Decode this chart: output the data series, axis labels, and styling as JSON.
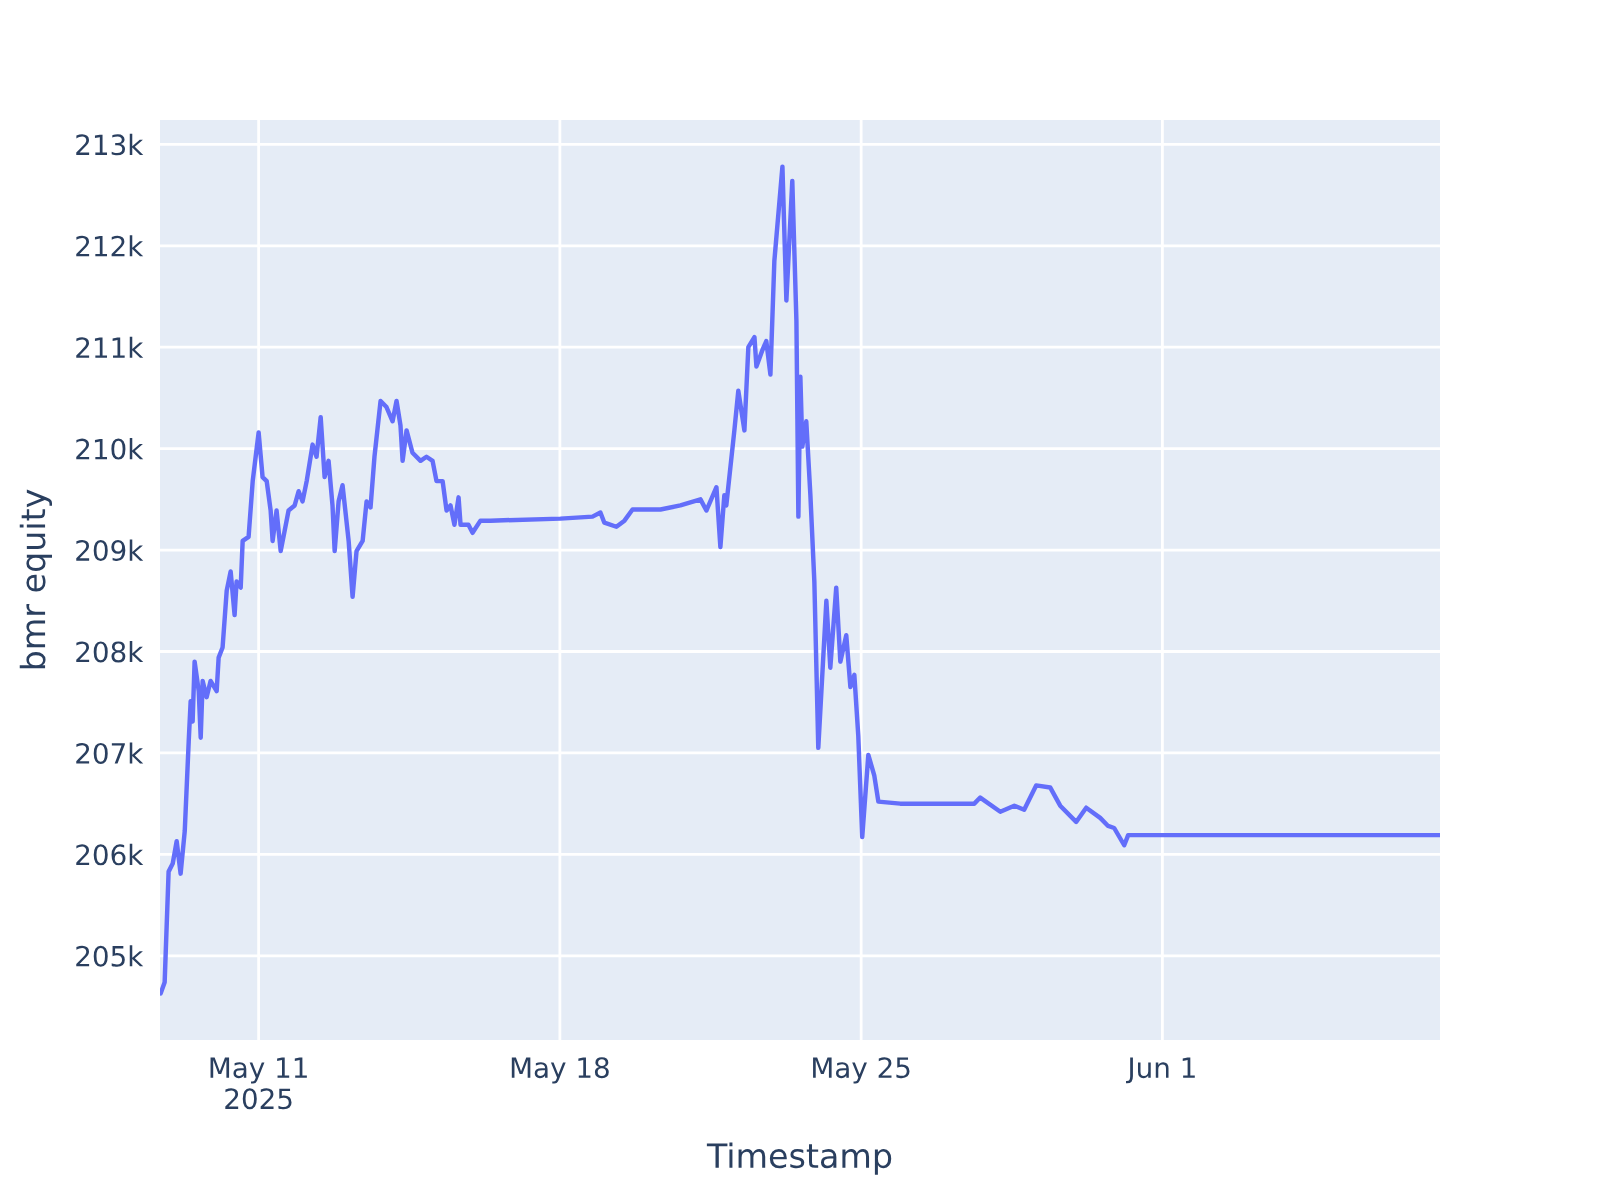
{
  "chart_data": {
    "type": "line",
    "xlabel": "Timestamp",
    "ylabel": "bmr equity",
    "x": [
      "2025-05-08T17:24",
      "2025-05-08T19:36",
      "2025-05-08T21:48",
      "2025-05-09T00:06",
      "2025-05-09T02:18",
      "2025-05-09T04:30",
      "2025-05-09T06:48",
      "2025-05-09T09:00",
      "2025-05-09T10:06",
      "2025-05-09T11:12",
      "2025-05-09T12:18",
      "2025-05-09T14:36",
      "2025-05-09T15:42",
      "2025-05-09T16:48",
      "2025-05-09T19:00",
      "2025-05-09T21:12",
      "2025-05-10T00:36",
      "2025-05-10T01:42",
      "2025-05-10T03:54",
      "2025-05-10T06:12",
      "2025-05-10T08:24",
      "2025-05-10T10:36",
      "2025-05-10T11:42",
      "2025-05-10T14:00",
      "2025-05-10T15:06",
      "2025-05-10T18:24",
      "2025-05-10T20:42",
      "2025-05-11T00:00",
      "2025-05-11T02:12",
      "2025-05-11T04:30",
      "2025-05-11T06:42",
      "2025-05-11T07:48",
      "2025-05-11T10:00",
      "2025-05-11T12:18",
      "2025-05-11T14:30",
      "2025-05-11T16:42",
      "2025-05-11T20:06",
      "2025-05-11T22:18",
      "2025-05-12T00:30",
      "2025-05-12T02:48",
      "2025-05-12T06:06",
      "2025-05-12T08:18",
      "2025-05-12T10:36",
      "2025-05-12T12:48",
      "2025-05-12T15:00",
      "2025-05-12T17:12",
      "2025-05-12T18:24",
      "2025-05-12T20:36",
      "2025-05-12T22:48",
      "2025-05-13T02:12",
      "2025-05-13T04:24",
      "2025-05-13T06:36",
      "2025-05-13T10:00",
      "2025-05-13T12:12",
      "2025-05-13T14:24",
      "2025-05-13T16:36",
      "2025-05-13T20:00",
      "2025-05-13T23:18",
      "2025-05-14T02:42",
      "2025-05-14T04:54",
      "2025-05-14T07:06",
      "2025-05-14T08:18",
      "2025-05-14T10:30",
      "2025-05-14T13:48",
      "2025-05-14T18:18",
      "2025-05-14T21:36",
      "2025-05-15T01:00",
      "2025-05-15T03:12",
      "2025-05-15T06:36",
      "2025-05-15T08:48",
      "2025-05-15T11:00",
      "2025-05-15T13:12",
      "2025-05-15T15:30",
      "2025-05-15T16:36",
      "2025-05-15T21:00",
      "2025-05-15T23:18",
      "2025-05-16T03:42",
      "2025-05-16T09:18",
      "2025-05-18T00:18",
      "2025-05-18T18:12",
      "2025-05-18T22:36",
      "2025-05-19T00:48",
      "2025-05-19T07:30",
      "2025-05-19T12:00",
      "2025-05-19T16:30",
      "2025-05-20T08:06",
      "2025-05-20T19:12",
      "2025-05-21T06:24",
      "2025-05-21T09:42",
      "2025-05-21T15:18",
      "2025-05-21T17:30",
      "2025-05-21T19:42",
      "2025-05-21T20:48",
      "2025-05-22T01:18",
      "2025-05-22T03:30",
      "2025-05-22T06:54",
      "2025-05-22T09:06",
      "2025-05-22T12:30",
      "2025-05-22T13:36",
      "2025-05-22T16:54",
      "2025-05-22T19:06",
      "2025-05-22T21:24",
      "2025-05-22T23:36",
      "2025-05-23T04:06",
      "2025-05-23T06:18",
      "2025-05-23T09:36",
      "2025-05-23T11:54",
      "2025-05-23T13:00",
      "2025-05-23T14:06",
      "2025-05-23T15:12",
      "2025-05-23T17:24",
      "2025-05-23T19:42",
      "2025-05-23T21:54",
      "2025-05-24T00:06",
      "2025-05-24T04:36",
      "2025-05-24T06:48",
      "2025-05-24T10:06",
      "2025-05-24T12:24",
      "2025-05-24T15:42",
      "2025-05-24T18:00",
      "2025-05-24T20:12",
      "2025-05-24T22:24",
      "2025-05-25T00:36",
      "2025-05-25T04:00",
      "2025-05-25T07:18",
      "2025-05-25T09:36",
      "2025-05-25T21:48",
      "2025-05-27T15:06",
      "2025-05-27T18:24",
      "2025-05-28T05:36",
      "2025-05-28T13:24",
      "2025-05-28T18:54",
      "2025-05-29T01:36",
      "2025-05-29T09:24",
      "2025-05-29T15:00",
      "2025-05-29T23:54",
      "2025-05-30T05:30",
      "2025-05-30T13:18",
      "2025-05-30T17:42",
      "2025-05-30T21:06",
      "2025-05-31T02:42",
      "2025-05-31T04:54",
      "2025-06-07T10:48"
    ],
    "series": [
      {
        "color": "#636efa",
        "values": [
          204630,
          204740,
          205830,
          205910,
          206130,
          205810,
          206230,
          207110,
          207510,
          207310,
          207900,
          207610,
          207150,
          207710,
          207550,
          207710,
          207610,
          207940,
          208040,
          208600,
          208790,
          208360,
          208690,
          208630,
          209090,
          209130,
          209680,
          210160,
          209720,
          209680,
          209390,
          209090,
          209390,
          208990,
          209190,
          209390,
          209440,
          209580,
          209480,
          209680,
          210040,
          209920,
          210310,
          209720,
          209880,
          209440,
          208990,
          209480,
          209640,
          209090,
          208540,
          208990,
          209090,
          209480,
          209420,
          209920,
          210470,
          210410,
          210270,
          210470,
          210230,
          209880,
          210180,
          209960,
          209880,
          209920,
          209880,
          209680,
          209680,
          209390,
          209440,
          209250,
          209520,
          209250,
          209250,
          209170,
          209290,
          209290,
          209310,
          209330,
          209370,
          209270,
          209230,
          209290,
          209400,
          209400,
          209440,
          209500,
          209390,
          209620,
          209030,
          209540,
          209440,
          210180,
          210570,
          210180,
          211000,
          211100,
          210810,
          210970,
          211060,
          210730,
          211850,
          212780,
          211460,
          212640,
          211260,
          209330,
          210710,
          210020,
          210270,
          209540,
          208690,
          207050,
          208500,
          207840,
          208630,
          207900,
          208160,
          207650,
          207770,
          207170,
          206170,
          206980,
          206780,
          206520,
          206500,
          206500,
          206560,
          206420,
          206480,
          206440,
          206680,
          206660,
          206480,
          206320,
          206460,
          206360,
          206280,
          206260,
          206090,
          206190,
          206190
        ]
      }
    ],
    "xlim": [
      "2025-05-08T17:00",
      "2025-06-07T10:48"
    ],
    "xticks": [
      {
        "value": "2025-05-11",
        "label": "May 11\n2025"
      },
      {
        "value": "2025-05-18",
        "label": "May 18"
      },
      {
        "value": "2025-05-25",
        "label": "May 25"
      },
      {
        "value": "2025-06-01",
        "label": "Jun 1"
      }
    ],
    "ylim": [
      204170,
      213240
    ],
    "yticks": [
      {
        "value": 205000,
        "label": "205k"
      },
      {
        "value": 206000,
        "label": "206k"
      },
      {
        "value": 207000,
        "label": "207k"
      },
      {
        "value": 208000,
        "label": "208k"
      },
      {
        "value": 209000,
        "label": "209k"
      },
      {
        "value": 210000,
        "label": "210k"
      },
      {
        "value": 211000,
        "label": "211k"
      },
      {
        "value": 212000,
        "label": "212k"
      },
      {
        "value": 213000,
        "label": "213k"
      }
    ],
    "grid": true,
    "legend": false,
    "marker": "none",
    "line_style": "solid"
  }
}
